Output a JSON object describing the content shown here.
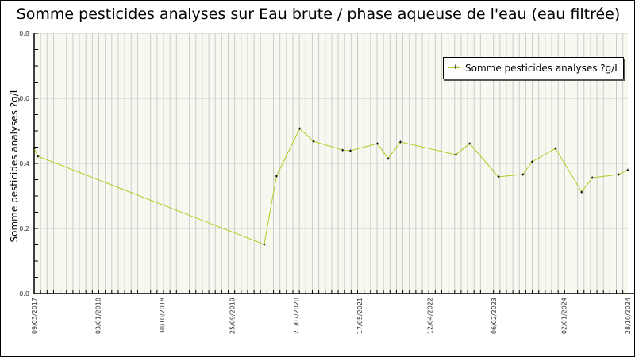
{
  "chart_data": {
    "type": "line",
    "title": "Somme pesticides analyses sur Eau brute / phase aqueuse de l'eau (eau filtrée)",
    "ylabel": "Somme pesticides analyses ?g/L",
    "xlabel": "",
    "ylim": [
      0,
      0.8
    ],
    "yticks": [
      "0.0",
      "0.2",
      "0.4",
      "0.6",
      "0.8"
    ],
    "xlim": [
      "2017-03-09",
      "2024-10-28"
    ],
    "xticks": [
      "09/03/2017",
      "03/01/2018",
      "30/10/2018",
      "25/09/2019",
      "21/07/2020",
      "17/05/2021",
      "12/04/2022",
      "06/02/2023",
      "02/01/2024",
      "28/10/2024"
    ],
    "grid": true,
    "legend_position": "top-right",
    "colors": {
      "line": "#a8d020",
      "marker": "#000000",
      "plot_bg": "#f8f8f0",
      "grid": "#cccccc"
    },
    "series": [
      {
        "name": "Somme pesticides analyses ?g/L",
        "x": [
          "2017-03-09",
          "2017-03-27",
          "2020-02-23",
          "2020-04-21",
          "2020-08-08",
          "2020-10-12",
          "2021-02-26",
          "2021-04-03",
          "2021-08-08",
          "2021-09-27",
          "2021-11-24",
          "2022-08-12",
          "2022-10-16",
          "2023-02-28",
          "2023-06-23",
          "2023-08-05",
          "2023-11-23",
          "2024-03-25",
          "2024-05-14",
          "2024-09-14",
          "2024-10-28"
        ],
        "y": [
          0.446,
          0.422,
          0.151,
          0.361,
          0.507,
          0.468,
          0.441,
          0.439,
          0.461,
          0.415,
          0.466,
          0.427,
          0.461,
          0.359,
          0.366,
          0.405,
          0.446,
          0.312,
          0.356,
          0.366,
          0.38
        ]
      }
    ]
  }
}
